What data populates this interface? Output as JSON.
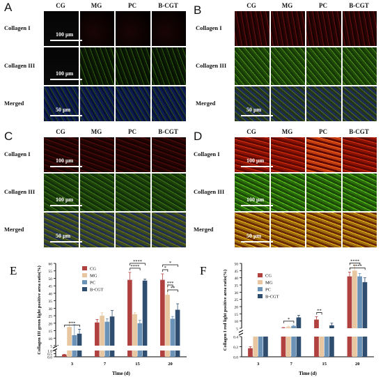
{
  "columns": [
    "CG",
    "MG",
    "PC",
    "B-CGT"
  ],
  "rows": [
    "Collagen I",
    "Collagen III",
    "Merged"
  ],
  "panels": [
    {
      "letter": "A",
      "scales": [
        "100 μm",
        "100 μm",
        "50 μm"
      ]
    },
    {
      "letter": "B",
      "scales": [
        "",
        "",
        "50 μm"
      ]
    },
    {
      "letter": "C",
      "scales": [
        "100 μm",
        "100 μm",
        "50 μm"
      ]
    },
    {
      "letter": "D",
      "scales": [
        "100 μm",
        "100 μm",
        "50 μm"
      ]
    }
  ],
  "colors": {
    "CG": "#b0413e",
    "MG": "#e8c6a0",
    "PC": "#6b93b7",
    "B-CGT": "#2f4d6e"
  },
  "chart_data": [
    {
      "panel": "E",
      "type": "bar",
      "ylabel": "Collagen III green light positive area ratio(%)",
      "xlabel": "Time (d)",
      "categories": [
        "3",
        "7",
        "15",
        "20"
      ],
      "y_break": [
        1.0,
        5.0
      ],
      "yticks": [
        "0.0",
        "0.5",
        "1.0",
        "5",
        "10",
        "15",
        "20",
        "25",
        "30",
        "35",
        "40",
        "45",
        "50",
        "55",
        "60"
      ],
      "series": [
        {
          "name": "CG",
          "values": [
            0.35,
            20.5,
            49,
            49
          ],
          "errors": [
            0.05,
            2,
            5,
            4
          ]
        },
        {
          "name": "MG",
          "values": [
            17.5,
            25,
            26,
            39
          ],
          "errors": [
            3,
            2,
            1,
            7
          ]
        },
        {
          "name": "PC",
          "values": [
            12,
            21,
            20,
            23
          ],
          "errors": [
            7,
            2,
            2,
            1.5
          ]
        },
        {
          "name": "B-CGT",
          "values": [
            13,
            24.5,
            48.5,
            29
          ],
          "errors": [
            3,
            4,
            1,
            4
          ]
        }
      ],
      "significance": [
        {
          "label": "***",
          "category": "3"
        },
        {
          "label": "****",
          "category": "15"
        },
        {
          "label": "****",
          "category": "15"
        },
        {
          "label": "*",
          "category": "20"
        },
        {
          "label": "***",
          "category": "20"
        },
        {
          "label": "**",
          "category": "20"
        },
        {
          "label": "*",
          "category": "20"
        }
      ]
    },
    {
      "panel": "F",
      "type": "bar",
      "ylabel": "Collagen I red light positive area ratio(%)",
      "xlabel": "Time (d)",
      "categories": [
        "3",
        "7",
        "15",
        "20"
      ],
      "y_break": [
        0.4,
        5.0
      ],
      "yticks": [
        "0.0",
        "0.2",
        "0.4",
        "5",
        "10",
        "15",
        "20",
        "25",
        "30",
        "35",
        "40",
        "45",
        "50"
      ],
      "series": [
        {
          "name": "CG",
          "values": [
            0.17,
            5.2,
            11,
            41
          ],
          "errors": [
            0.03,
            0.3,
            2,
            3
          ]
        },
        {
          "name": "MG",
          "values": [
            3,
            5.8,
            2.5,
            45
          ],
          "errors": [
            0.5,
            0.6,
            0.4,
            4
          ]
        },
        {
          "name": "PC",
          "values": [
            2.9,
            6.5,
            2.2,
            41
          ],
          "errors": [
            0.5,
            0.5,
            0.4,
            2
          ]
        },
        {
          "name": "B-CGT",
          "values": [
            2.4,
            12.5,
            7,
            37
          ],
          "errors": [
            0.5,
            1.5,
            1.5,
            3
          ]
        }
      ],
      "significance": [
        {
          "label": "*",
          "category": "7"
        },
        {
          "label": "**",
          "category": "15"
        },
        {
          "label": "****",
          "category": "20"
        },
        {
          "label": "****",
          "category": "20"
        },
        {
          "label": "***",
          "category": "20"
        }
      ]
    }
  ]
}
